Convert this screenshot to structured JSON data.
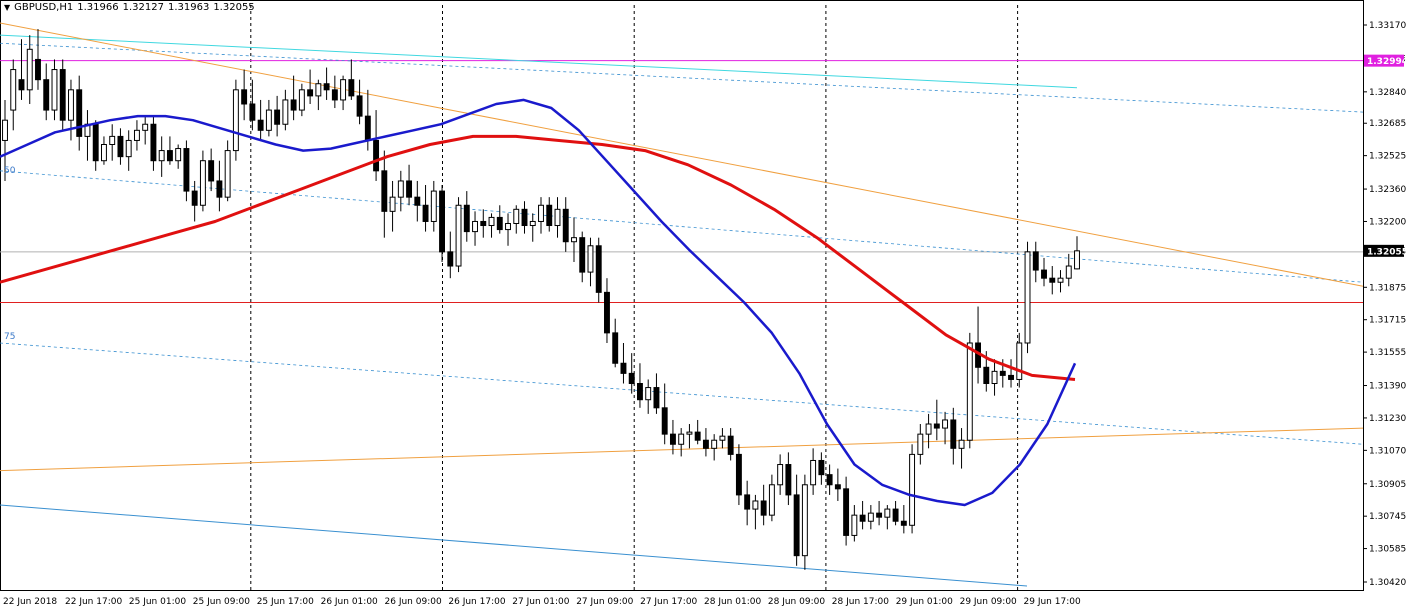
{
  "header": {
    "symbol": "GBPUSD,H1",
    "open": "1.31966",
    "high": "1.32127",
    "low": "1.31963",
    "close": "1.32055"
  },
  "fib_labels": [
    "50",
    "75"
  ],
  "colors": {
    "bull": "#ffffff",
    "bear": "#000000",
    "ma_fast": "#1a1acc",
    "ma_slow": "#e01010",
    "trend": "#f0a040",
    "channel_top": "#40d8e0",
    "channel_dash": "#3a90d0",
    "level_magenta": "#e020e0",
    "level_red": "#e02020",
    "level_grey": "#b0b0b0"
  },
  "chart_data": {
    "type": "candlestick",
    "title": "GBPUSD,H1",
    "y_ticks": [
      "1.33170",
      "1.33005",
      "1.32840",
      "1.32685",
      "1.32525",
      "1.32360",
      "1.32200",
      "1.32055",
      "1.31875",
      "1.31715",
      "1.31555",
      "1.31390",
      "1.31230",
      "1.31070",
      "1.30905",
      "1.30745",
      "1.30585",
      "1.30420"
    ],
    "x_ticks": [
      "22 Jun 2018",
      "22 Jun 17:00",
      "25 Jun 01:00",
      "25 Jun 09:00",
      "25 Jun 17:00",
      "26 Jun 01:00",
      "26 Jun 09:00",
      "26 Jun 17:00",
      "27 Jun 01:00",
      "27 Jun 09:00",
      "27 Jun 17:00",
      "28 Jun 01:00",
      "28 Jun 09:00",
      "28 Jun 17:00",
      "29 Jun 01:00",
      "29 Jun 09:00",
      "29 Jun 17:00"
    ],
    "ylim": [
      1.3042,
      1.3317
    ],
    "price_labels": [
      {
        "value": 1.32994,
        "text": "1.32994",
        "color": "#e020e0"
      },
      {
        "value": 1.32055,
        "text": "1.32055",
        "color": "#000000"
      }
    ],
    "horizontal_levels": [
      1.32994,
      1.3205,
      1.318
    ],
    "candles": [
      [
        1.326,
        1.328,
        1.324,
        1.327
      ],
      [
        1.3275,
        1.33,
        1.3265,
        1.3295
      ],
      [
        1.329,
        1.331,
        1.328,
        1.3285
      ],
      [
        1.3285,
        1.3312,
        1.3278,
        1.3305
      ],
      [
        1.33,
        1.3315,
        1.3285,
        1.329
      ],
      [
        1.329,
        1.3298,
        1.327,
        1.3275
      ],
      [
        1.3275,
        1.33,
        1.327,
        1.3295
      ],
      [
        1.3295,
        1.33,
        1.3265,
        1.327
      ],
      [
        1.327,
        1.329,
        1.326,
        1.3285
      ],
      [
        1.3285,
        1.3292,
        1.3255,
        1.3262
      ],
      [
        1.3262,
        1.3275,
        1.325,
        1.3268
      ],
      [
        1.3268,
        1.327,
        1.3245,
        1.325
      ],
      [
        1.325,
        1.3262,
        1.3248,
        1.3258
      ],
      [
        1.3258,
        1.3268,
        1.325,
        1.3262
      ],
      [
        1.3262,
        1.3266,
        1.3248,
        1.3252
      ],
      [
        1.3252,
        1.3265,
        1.3245,
        1.326
      ],
      [
        1.326,
        1.327,
        1.3255,
        1.3265
      ],
      [
        1.3265,
        1.3272,
        1.3258,
        1.3268
      ],
      [
        1.3268,
        1.3272,
        1.3245,
        1.325
      ],
      [
        1.325,
        1.3262,
        1.3242,
        1.3255
      ],
      [
        1.3255,
        1.3262,
        1.3248,
        1.325
      ],
      [
        1.325,
        1.3258,
        1.3246,
        1.3256
      ],
      [
        1.3256,
        1.326,
        1.323,
        1.3235
      ],
      [
        1.3235,
        1.324,
        1.322,
        1.3228
      ],
      [
        1.3228,
        1.3255,
        1.3225,
        1.325
      ],
      [
        1.325,
        1.3256,
        1.3235,
        1.324
      ],
      [
        1.324,
        1.325,
        1.3225,
        1.3232
      ],
      [
        1.3232,
        1.326,
        1.323,
        1.3255
      ],
      [
        1.3255,
        1.329,
        1.325,
        1.3285
      ],
      [
        1.3285,
        1.3295,
        1.327,
        1.3278
      ],
      [
        1.3278,
        1.329,
        1.3265,
        1.327
      ],
      [
        1.327,
        1.328,
        1.326,
        1.3265
      ],
      [
        1.3265,
        1.328,
        1.3262,
        1.3275
      ],
      [
        1.3275,
        1.3282,
        1.3262,
        1.3268
      ],
      [
        1.3268,
        1.3285,
        1.3265,
        1.328
      ],
      [
        1.328,
        1.3292,
        1.327,
        1.3275
      ],
      [
        1.3275,
        1.3288,
        1.3272,
        1.3285
      ],
      [
        1.3285,
        1.3295,
        1.3278,
        1.3282
      ],
      [
        1.3282,
        1.329,
        1.3275,
        1.3288
      ],
      [
        1.3288,
        1.3296,
        1.328,
        1.3285
      ],
      [
        1.3285,
        1.3292,
        1.3276,
        1.328
      ],
      [
        1.328,
        1.3292,
        1.3275,
        1.329
      ],
      [
        1.329,
        1.33,
        1.328,
        1.3282
      ],
      [
        1.3282,
        1.329,
        1.3268,
        1.3272
      ],
      [
        1.3272,
        1.3285,
        1.3255,
        1.326
      ],
      [
        1.326,
        1.3275,
        1.324,
        1.3245
      ],
      [
        1.3245,
        1.3255,
        1.3212,
        1.3225
      ],
      [
        1.3225,
        1.324,
        1.3215,
        1.3232
      ],
      [
        1.3232,
        1.3245,
        1.3225,
        1.324
      ],
      [
        1.324,
        1.3248,
        1.3228,
        1.3232
      ],
      [
        1.3232,
        1.324,
        1.322,
        1.3228
      ],
      [
        1.3228,
        1.3238,
        1.3215,
        1.322
      ],
      [
        1.322,
        1.324,
        1.3215,
        1.3235
      ],
      [
        1.3235,
        1.3238,
        1.32,
        1.3205
      ],
      [
        1.3205,
        1.3215,
        1.3192,
        1.3198
      ],
      [
        1.3198,
        1.3232,
        1.3195,
        1.3228
      ],
      [
        1.3228,
        1.3235,
        1.321,
        1.3215
      ],
      [
        1.3215,
        1.3225,
        1.3208,
        1.322
      ],
      [
        1.322,
        1.3226,
        1.3212,
        1.3218
      ],
      [
        1.3218,
        1.3224,
        1.3212,
        1.3222
      ],
      [
        1.3222,
        1.3228,
        1.3214,
        1.3216
      ],
      [
        1.3216,
        1.3224,
        1.3208,
        1.3219
      ],
      [
        1.3219,
        1.3228,
        1.3214,
        1.3226
      ],
      [
        1.3226,
        1.323,
        1.3214,
        1.3218
      ],
      [
        1.3218,
        1.3224,
        1.321,
        1.322
      ],
      [
        1.322,
        1.3232,
        1.3214,
        1.3228
      ],
      [
        1.3228,
        1.3232,
        1.3215,
        1.3218
      ],
      [
        1.3218,
        1.3232,
        1.3212,
        1.3226
      ],
      [
        1.3226,
        1.3232,
        1.3205,
        1.321
      ],
      [
        1.321,
        1.3222,
        1.32,
        1.3212
      ],
      [
        1.3212,
        1.3215,
        1.319,
        1.3195
      ],
      [
        1.3195,
        1.3212,
        1.3188,
        1.3208
      ],
      [
        1.3208,
        1.3212,
        1.318,
        1.3185
      ],
      [
        1.3185,
        1.3192,
        1.316,
        1.3165
      ],
      [
        1.3165,
        1.3172,
        1.3148,
        1.315
      ],
      [
        1.315,
        1.316,
        1.314,
        1.3145
      ],
      [
        1.3145,
        1.3155,
        1.3135,
        1.314
      ],
      [
        1.314,
        1.315,
        1.3128,
        1.3132
      ],
      [
        1.3132,
        1.3142,
        1.3125,
        1.3138
      ],
      [
        1.3138,
        1.3145,
        1.3125,
        1.3128
      ],
      [
        1.3128,
        1.314,
        1.311,
        1.3115
      ],
      [
        1.3115,
        1.3122,
        1.3105,
        1.311
      ],
      [
        1.311,
        1.3118,
        1.3104,
        1.3115
      ],
      [
        1.3115,
        1.312,
        1.3108,
        1.3116
      ],
      [
        1.3116,
        1.3122,
        1.311,
        1.3112
      ],
      [
        1.3112,
        1.3118,
        1.3104,
        1.3108
      ],
      [
        1.3108,
        1.3115,
        1.3102,
        1.3112
      ],
      [
        1.3112,
        1.3118,
        1.3108,
        1.3114
      ],
      [
        1.3114,
        1.3118,
        1.3102,
        1.3105
      ],
      [
        1.3105,
        1.311,
        1.308,
        1.3085
      ],
      [
        1.3085,
        1.3092,
        1.307,
        1.3078
      ],
      [
        1.3078,
        1.3085,
        1.3068,
        1.3082
      ],
      [
        1.3082,
        1.309,
        1.307,
        1.3075
      ],
      [
        1.3075,
        1.3095,
        1.3072,
        1.309
      ],
      [
        1.309,
        1.3105,
        1.3085,
        1.31
      ],
      [
        1.31,
        1.3106,
        1.308,
        1.3085
      ],
      [
        1.3085,
        1.3095,
        1.305,
        1.3055
      ],
      [
        1.3055,
        1.3095,
        1.3048,
        1.309
      ],
      [
        1.309,
        1.3108,
        1.3085,
        1.3102
      ],
      [
        1.3102,
        1.3106,
        1.309,
        1.3095
      ],
      [
        1.3095,
        1.31,
        1.3085,
        1.309
      ],
      [
        1.309,
        1.3098,
        1.3082,
        1.3088
      ],
      [
        1.3088,
        1.3094,
        1.306,
        1.3065
      ],
      [
        1.3065,
        1.308,
        1.3062,
        1.3075
      ],
      [
        1.3075,
        1.3082,
        1.3068,
        1.3072
      ],
      [
        1.3072,
        1.308,
        1.3068,
        1.3076
      ],
      [
        1.3076,
        1.3082,
        1.307,
        1.3074
      ],
      [
        1.3074,
        1.308,
        1.3068,
        1.3078
      ],
      [
        1.3078,
        1.3082,
        1.307,
        1.3072
      ],
      [
        1.3072,
        1.308,
        1.3066,
        1.307
      ],
      [
        1.307,
        1.311,
        1.3066,
        1.3105
      ],
      [
        1.3105,
        1.312,
        1.31,
        1.3115
      ],
      [
        1.3115,
        1.3125,
        1.3108,
        1.312
      ],
      [
        1.312,
        1.3132,
        1.3112,
        1.3118
      ],
      [
        1.3118,
        1.3126,
        1.311,
        1.3122
      ],
      [
        1.3122,
        1.3128,
        1.31,
        1.3108
      ],
      [
        1.3108,
        1.3118,
        1.3098,
        1.3112
      ],
      [
        1.3112,
        1.3165,
        1.3108,
        1.316
      ],
      [
        1.316,
        1.3178,
        1.314,
        1.3148
      ],
      [
        1.3148,
        1.3156,
        1.3136,
        1.314
      ],
      [
        1.314,
        1.3152,
        1.3134,
        1.3146
      ],
      [
        1.3146,
        1.3152,
        1.3138,
        1.3144
      ],
      [
        1.3144,
        1.3152,
        1.3138,
        1.3142
      ],
      [
        1.3142,
        1.3165,
        1.3138,
        1.316
      ],
      [
        1.316,
        1.321,
        1.3155,
        1.3205
      ],
      [
        1.3205,
        1.321,
        1.319,
        1.3196
      ],
      [
        1.3196,
        1.3202,
        1.3188,
        1.3192
      ],
      [
        1.3192,
        1.3198,
        1.3184,
        1.319
      ],
      [
        1.319,
        1.3196,
        1.3185,
        1.3192
      ],
      [
        1.3192,
        1.3204,
        1.3188,
        1.3198
      ],
      [
        1.31966,
        1.32127,
        1.31963,
        1.32055
      ]
    ],
    "ma_fast": [
      1.3252,
      1.3258,
      1.3264,
      1.3267,
      1.327,
      1.3272,
      1.3272,
      1.327,
      1.3266,
      1.3262,
      1.3258,
      1.3255,
      1.3256,
      1.3259,
      1.3262,
      1.3265,
      1.3268,
      1.3273,
      1.3278,
      1.328,
      1.3276,
      1.3265,
      1.325,
      1.3235,
      1.322,
      1.3206,
      1.3193,
      1.318,
      1.3165,
      1.3145,
      1.312,
      1.31,
      1.309,
      1.3085,
      1.3082,
      1.308,
      1.3086,
      1.31,
      1.312,
      1.315
    ],
    "ma_slow": [
      1.319,
      1.3196,
      1.3202,
      1.3208,
      1.3214,
      1.322,
      1.3228,
      1.3236,
      1.3244,
      1.3252,
      1.3258,
      1.3262,
      1.3262,
      1.326,
      1.3258,
      1.3255,
      1.3248,
      1.3238,
      1.3226,
      1.3212,
      1.3196,
      1.318,
      1.3164,
      1.3152,
      1.3144,
      1.3142
    ],
    "trend_lines": [
      {
        "name": "down",
        "from": [
          0,
          1.3318
        ],
        "to": [
          1.0,
          1.3188
        ]
      },
      {
        "name": "up",
        "from": [
          0,
          1.3097
        ],
        "to": [
          1.0,
          1.3118
        ]
      }
    ]
  }
}
